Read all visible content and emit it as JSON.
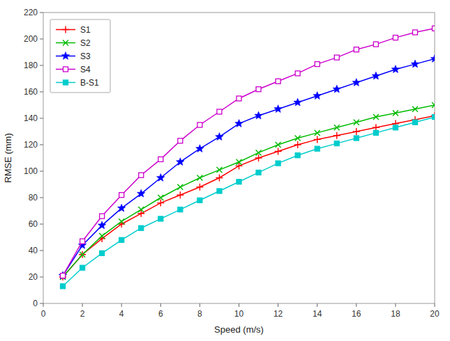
{
  "chart_data": {
    "type": "line",
    "x": [
      1,
      2,
      3,
      4,
      5,
      6,
      7,
      8,
      9,
      10,
      11,
      12,
      13,
      14,
      15,
      16,
      17,
      18,
      19,
      20
    ],
    "series": [
      {
        "name": "S1",
        "color": "#ff0000",
        "marker": "plus",
        "values": [
          20,
          37,
          49,
          60,
          68,
          76,
          82,
          88,
          95,
          104,
          110,
          115,
          120,
          124,
          127,
          130,
          133,
          136,
          139,
          142
        ]
      },
      {
        "name": "S2",
        "color": "#00bb00",
        "marker": "x",
        "values": [
          20,
          37,
          51,
          62,
          71,
          80,
          88,
          95,
          101,
          107,
          114,
          120,
          125,
          129,
          133,
          137,
          141,
          144,
          147,
          150
        ]
      },
      {
        "name": "S3",
        "color": "#0000ff",
        "marker": "star",
        "values": [
          21,
          44,
          59,
          72,
          83,
          95,
          107,
          117,
          126,
          136,
          142,
          147,
          152,
          157,
          162,
          167,
          172,
          177,
          181,
          185
        ]
      },
      {
        "name": "S4",
        "color": "#cc00cc",
        "marker": "square-open",
        "values": [
          21,
          47,
          66,
          82,
          97,
          109,
          123,
          135,
          145,
          155,
          162,
          168,
          174,
          181,
          186,
          192,
          196,
          201,
          205,
          208
        ]
      },
      {
        "name": "B-S1",
        "color": "#00cccc",
        "marker": "square",
        "values": [
          13,
          27,
          38,
          48,
          57,
          64,
          71,
          78,
          85,
          92,
          99,
          106,
          112,
          117,
          121,
          125,
          129,
          133,
          137,
          141
        ]
      }
    ],
    "xlabel": "Speed (m/s)",
    "ylabel": "RMSE (mm)",
    "xlim": [
      0,
      20
    ],
    "ylim": [
      0,
      220
    ],
    "xticks": [
      0,
      2,
      4,
      6,
      8,
      10,
      12,
      14,
      16,
      18,
      20
    ],
    "yticks": [
      0,
      20,
      40,
      60,
      80,
      100,
      120,
      140,
      160,
      180,
      200,
      220
    ],
    "grid": false,
    "legend": "upper left"
  }
}
